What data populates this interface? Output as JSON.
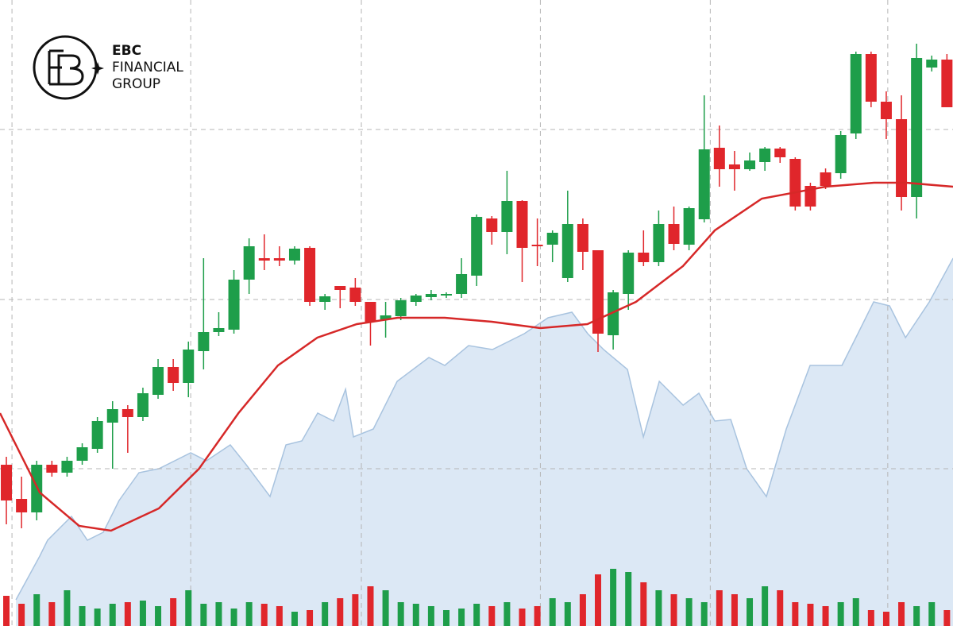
{
  "logo": {
    "lines": [
      "EBC",
      "FINANCIAL",
      "GROUP"
    ]
  },
  "chart_data": {
    "type": "candlestick",
    "xlim": [
      -0.42,
      62.4
    ],
    "ylim": [
      0,
      788
    ],
    "xticks": [
      0.37,
      12.15,
      23.4,
      35.2,
      46.4,
      58.1
    ],
    "yticks": [
      198,
      411,
      625
    ],
    "grid": true,
    "up_color": "#1e9e4a",
    "down_color": "#e0262b",
    "open": [
      203,
      160,
      143,
      203,
      193,
      208,
      223,
      256,
      273,
      263,
      291,
      326,
      306,
      346,
      370,
      373,
      436,
      463,
      463,
      460,
      476,
      408,
      428,
      426,
      408,
      386,
      390,
      408,
      414,
      416,
      418,
      441,
      513,
      496,
      535,
      480,
      480,
      438,
      506,
      473,
      366,
      418,
      470,
      458,
      506,
      480,
      512,
      602,
      581,
      575,
      584,
      601,
      588,
      554,
      571,
      570,
      620,
      720,
      660,
      638,
      540,
      703,
      713
    ],
    "high": [
      213,
      188,
      208,
      208,
      213,
      230,
      263,
      283,
      278,
      300,
      336,
      336,
      358,
      463,
      395,
      448,
      488,
      493,
      478,
      478,
      478,
      418,
      428,
      438,
      408,
      408,
      413,
      418,
      423,
      420,
      463,
      518,
      516,
      573,
      536,
      513,
      498,
      548,
      513,
      473,
      423,
      473,
      498,
      523,
      528,
      528,
      668,
      630,
      598,
      596,
      603,
      603,
      590,
      558,
      576,
      623,
      723,
      723,
      673,
      668,
      733,
      718,
      720
    ],
    "low": [
      128,
      123,
      133,
      188,
      188,
      203,
      218,
      198,
      218,
      258,
      286,
      296,
      288,
      323,
      365,
      368,
      418,
      448,
      453,
      455,
      403,
      398,
      400,
      403,
      353,
      363,
      385,
      403,
      410,
      413,
      413,
      428,
      480,
      468,
      433,
      453,
      458,
      433,
      448,
      345,
      348,
      398,
      453,
      453,
      473,
      473,
      508,
      553,
      548,
      573,
      573,
      583,
      523,
      523,
      550,
      563,
      613,
      653,
      613,
      523,
      513,
      698,
      653
    ],
    "close": [
      158,
      143,
      203,
      193,
      208,
      225,
      258,
      273,
      263,
      293,
      326,
      306,
      348,
      370,
      375,
      436,
      478,
      460,
      460,
      475,
      408,
      415,
      423,
      408,
      383,
      391,
      410,
      416,
      418,
      418,
      443,
      515,
      496,
      535,
      476,
      478,
      495,
      506,
      471,
      368,
      420,
      470,
      458,
      506,
      481,
      526,
      600,
      575,
      575,
      586,
      601,
      590,
      528,
      528,
      554,
      618,
      720,
      660,
      638,
      540,
      715,
      713,
      653
    ],
    "volume": [
      38,
      28,
      40,
      30,
      45,
      25,
      22,
      28,
      30,
      32,
      25,
      35,
      45,
      28,
      30,
      22,
      30,
      28,
      25,
      18,
      20,
      30,
      35,
      40,
      50,
      45,
      30,
      28,
      25,
      20,
      22,
      28,
      25,
      30,
      22,
      25,
      35,
      30,
      40,
      65,
      72,
      68,
      55,
      45,
      40,
      35,
      30,
      45,
      40,
      35,
      50,
      45,
      30,
      28,
      25,
      30,
      35,
      20,
      18,
      30,
      25,
      30,
      20
    ],
    "ma": {
      "color": "#d62828",
      "x": [
        -0.42,
        2.2,
        4.8,
        6.9,
        10.05,
        12.7,
        15.3,
        17.9,
        20.5,
        23.1,
        25.8,
        28.9,
        32,
        35.2,
        38.3,
        41.5,
        44.6,
        46.7,
        49.8,
        54,
        57.2,
        59.3,
        62.4
      ],
      "values": [
        268,
        168,
        126,
        120,
        148,
        198,
        268,
        328,
        363,
        380,
        388,
        388,
        383,
        375,
        380,
        408,
        453,
        498,
        538,
        553,
        558,
        558,
        553
      ]
    },
    "area": {
      "color": "#dce8f5",
      "line_color": "#a8c3df",
      "x": [
        0.63,
        2.2,
        2.72,
        4.29,
        5.34,
        6.39,
        7.43,
        8.74,
        10.05,
        12.15,
        13.19,
        14.76,
        15.81,
        17.38,
        18.43,
        19.48,
        20.52,
        21.57,
        22.36,
        22.88,
        24.19,
        25.76,
        27.85,
        28.9,
        30.47,
        32.04,
        34.14,
        35.71,
        37.28,
        38.32,
        39.37,
        40.94,
        41.99,
        43.04,
        44.61,
        45.65,
        46.7,
        47.75,
        48.8,
        50.1,
        51.41,
        52.98,
        55.08,
        56.13,
        57.17,
        58.22,
        59.27,
        60.84,
        62.41
      ],
      "values": [
        33,
        88,
        108,
        138,
        108,
        118,
        158,
        193,
        198,
        218,
        208,
        228,
        203,
        163,
        228,
        233,
        268,
        258,
        298,
        238,
        248,
        308,
        338,
        328,
        353,
        348,
        368,
        388,
        395,
        368,
        348,
        323,
        238,
        308,
        278,
        293,
        258,
        260,
        198,
        163,
        248,
        328,
        328,
        368,
        408,
        403,
        363,
        408,
        463
      ]
    }
  }
}
